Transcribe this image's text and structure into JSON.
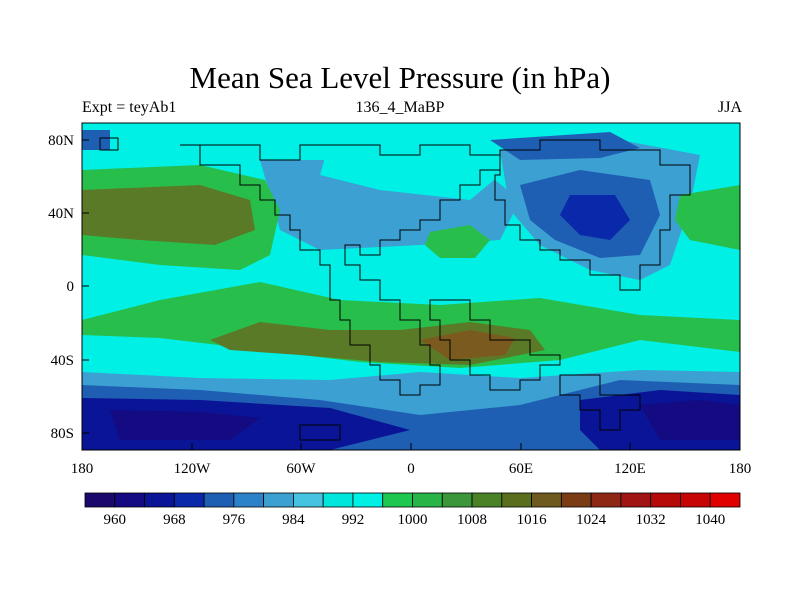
{
  "title": "Mean Sea Level Pressure (in hPa)",
  "subtitle_left": "Expt = teyAb1",
  "subtitle_center": "136_4_MaBP",
  "subtitle_right": "JJA",
  "x_ticks": [
    "180",
    "120W",
    "60W",
    "0",
    "60E",
    "120E",
    "180"
  ],
  "y_ticks": [
    "80N",
    "40N",
    "0",
    "40S",
    "80S"
  ],
  "colorbar": {
    "labels": [
      "960",
      "968",
      "976",
      "984",
      "992",
      "1000",
      "1008",
      "1016",
      "1024",
      "1032",
      "1040"
    ],
    "colors": [
      "#1b0a6b",
      "#140a82",
      "#0a1496",
      "#0a28aa",
      "#1e5fb4",
      "#2b82c8",
      "#3ca0d2",
      "#45c3e0",
      "#00e6dc",
      "#00f0e6",
      "#1ec850",
      "#28b446",
      "#3c963c",
      "#4b8228",
      "#5a6e1e",
      "#6e5a1e",
      "#7a3c14",
      "#8c2814",
      "#a01414",
      "#b40a0a",
      "#c80505",
      "#e00000"
    ]
  },
  "colors": {
    "deep_blue": "#0f14a0",
    "blue": "#1e5fb4",
    "light_blue": "#3ca0d2",
    "cyan": "#00f0e6",
    "green": "#28be4b",
    "olive": "#5a7a28",
    "brown": "#7a5a1e"
  }
}
